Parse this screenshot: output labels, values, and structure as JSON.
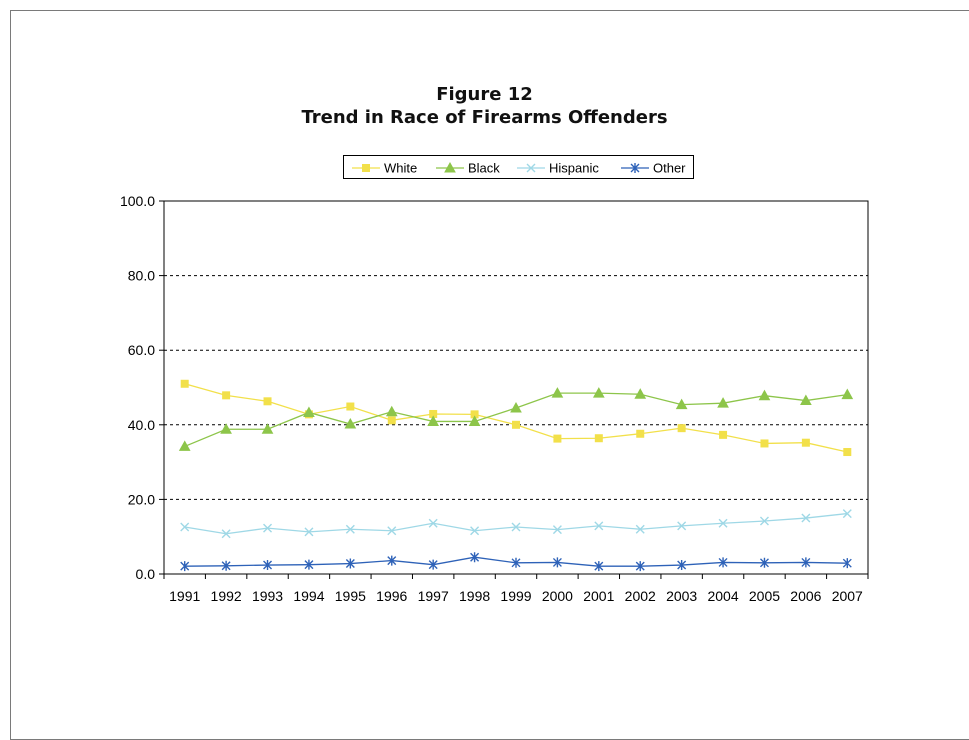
{
  "figure": {
    "label": "Figure 12",
    "title": "Trend in Race of Firearms Offenders"
  },
  "chart_data": {
    "type": "line",
    "title": "Trend in Race of Firearms Offenders",
    "xlabel": "",
    "ylabel": "",
    "ylim": [
      0,
      100
    ],
    "y_ticks": [
      "0.0",
      "20.0",
      "40.0",
      "60.0",
      "80.0",
      "100.0"
    ],
    "y_tick_values": [
      0,
      20,
      40,
      60,
      80,
      100
    ],
    "grid": "horizontal dashed",
    "legend_position": "top-center",
    "categories": [
      "1991",
      "1992",
      "1993",
      "1994",
      "1995",
      "1996",
      "1997",
      "1998",
      "1999",
      "2000",
      "2001",
      "2002",
      "2003",
      "2004",
      "2005",
      "2006",
      "2007"
    ],
    "series": [
      {
        "name": "White",
        "color": "#f2e04a",
        "marker": "square",
        "values": [
          51.0,
          47.9,
          46.3,
          42.8,
          44.9,
          41.2,
          42.9,
          42.8,
          40.0,
          36.3,
          36.4,
          37.6,
          39.1,
          37.3,
          35.0,
          35.2,
          32.7
        ]
      },
      {
        "name": "Black",
        "color": "#8dc54a",
        "marker": "triangle",
        "values": [
          34.2,
          38.8,
          38.8,
          43.3,
          40.2,
          43.5,
          40.9,
          40.9,
          44.5,
          48.5,
          48.5,
          48.2,
          45.4,
          45.8,
          47.8,
          46.5,
          48.1
        ]
      },
      {
        "name": "Hispanic",
        "color": "#9fd8e6",
        "marker": "x",
        "values": [
          12.6,
          10.8,
          12.3,
          11.3,
          12.0,
          11.6,
          13.6,
          11.6,
          12.6,
          11.9,
          12.9,
          12.0,
          12.9,
          13.6,
          14.2,
          15.0,
          16.2
        ]
      },
      {
        "name": "Other",
        "color": "#2e62b8",
        "marker": "star",
        "values": [
          2.1,
          2.2,
          2.4,
          2.5,
          2.8,
          3.6,
          2.5,
          4.5,
          3.0,
          3.1,
          2.1,
          2.1,
          2.4,
          3.1,
          3.0,
          3.1,
          2.9
        ]
      }
    ]
  }
}
